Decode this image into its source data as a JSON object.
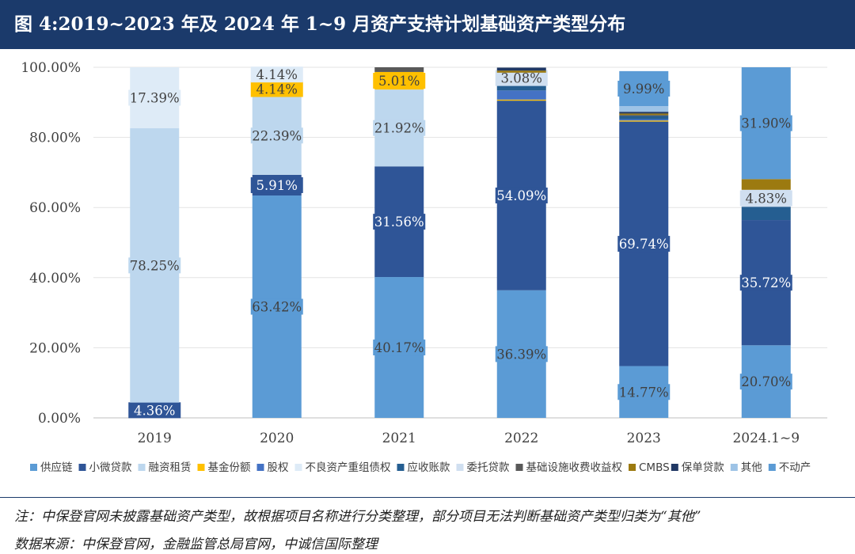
{
  "header": {
    "title": "图 4:2019~2023 年及 2024 年 1~9 月资产支持计划基础资产类型分布"
  },
  "notes": {
    "note": "注：中保登官网未披露基础资产类型，故根据项目名称进行分类整理，部分项目无法判断基础资产类型归类为“其他”",
    "source": "数据来源：中保登官网，金融监管总局官网，中诚信国际整理"
  },
  "chart_data": {
    "type": "bar",
    "stacked": true,
    "title": "图 4:2019~2023 年及 2024 年 1~9 月资产支持计划基础资产类型分布",
    "xlabel": "",
    "ylabel": "",
    "ylim": [
      0,
      100
    ],
    "yticks": [
      "0.00%",
      "20.00%",
      "40.00%",
      "60.00%",
      "80.00%",
      "100.00%"
    ],
    "ytick_values": [
      0,
      20,
      40,
      60,
      80,
      100
    ],
    "categories": [
      "2019",
      "2020",
      "2021",
      "2022",
      "2023",
      "2024.1~9"
    ],
    "legend_position": "bottom",
    "series": [
      {
        "name": "供应链",
        "color": "#5b9bd5",
        "values": [
          0,
          63.42,
          40.17,
          36.39,
          14.77,
          20.7
        ],
        "labels": [
          "",
          "63.42%",
          "40.17%",
          "36.39%",
          "14.77%",
          "20.70%"
        ]
      },
      {
        "name": "小微贷款",
        "color": "#2f5597",
        "values": [
          4.36,
          5.91,
          31.56,
          54.09,
          69.74,
          35.72
        ],
        "labels": [
          "4.36%",
          "5.91%",
          "31.56%",
          "54.09%",
          "69.74%",
          "35.72%"
        ]
      },
      {
        "name": "融资租赁",
        "color": "#bdd7ee",
        "values": [
          78.25,
          22.39,
          21.92,
          0,
          0,
          0
        ],
        "labels": [
          "78.25%",
          "22.39%",
          "21.92%",
          "",
          "",
          ""
        ]
      },
      {
        "name": "基金份额",
        "color": "#ffc000",
        "values": [
          0,
          4.14,
          5.01,
          0.3,
          0.3,
          0
        ],
        "labels": [
          "",
          "4.14%",
          "5.01%",
          "",
          "",
          ""
        ]
      },
      {
        "name": "股权",
        "color": "#4472c4",
        "values": [
          0,
          0,
          0,
          2.6,
          0.4,
          0
        ],
        "labels": [
          "",
          "",
          "",
          "",
          "",
          ""
        ]
      },
      {
        "name": "不良资产重组债权",
        "color": "#deebf7",
        "values": [
          17.39,
          4.14,
          0,
          0,
          0,
          0
        ],
        "labels": [
          "17.39%",
          "4.14%",
          "",
          "",
          "",
          ""
        ]
      },
      {
        "name": "应收账款",
        "color": "#255e91",
        "values": [
          0,
          0,
          0,
          2.0,
          0.9,
          3.8
        ],
        "labels": [
          "",
          "",
          "",
          "",
          "",
          ""
        ]
      },
      {
        "name": "委托贷款",
        "color": "#d0dff0",
        "values": [
          0,
          0,
          0,
          3.08,
          0,
          4.83
        ],
        "labels": [
          "",
          "",
          "",
          "3.08%",
          "",
          "4.83%"
        ]
      },
      {
        "name": "基础设施收费收益权",
        "color": "#595959",
        "values": [
          0,
          0,
          1.34,
          0,
          0.3,
          0
        ],
        "labels": [
          "",
          "",
          "",
          "",
          "",
          ""
        ]
      },
      {
        "name": "CMBS",
        "color": "#9c7a10",
        "values": [
          0,
          0,
          0,
          0.6,
          0.4,
          3.05
        ],
        "labels": [
          "",
          "",
          "",
          "",
          "",
          ""
        ]
      },
      {
        "name": "保单贷款",
        "color": "#203864",
        "values": [
          0,
          0,
          0,
          0.84,
          0.5,
          0
        ],
        "labels": [
          "",
          "",
          "",
          "",
          "",
          ""
        ]
      },
      {
        "name": "其他",
        "color": "#9dc3e6",
        "values": [
          0,
          0,
          0,
          0,
          1.6,
          0
        ],
        "labels": [
          "",
          "",
          "",
          "",
          "",
          ""
        ]
      },
      {
        "name": "不动产",
        "color": "#5b9bd5",
        "values": [
          0,
          0,
          0,
          0,
          9.99,
          31.9
        ],
        "labels": [
          "",
          "",
          "",
          "",
          "9.99%",
          "31.90%"
        ]
      }
    ]
  }
}
